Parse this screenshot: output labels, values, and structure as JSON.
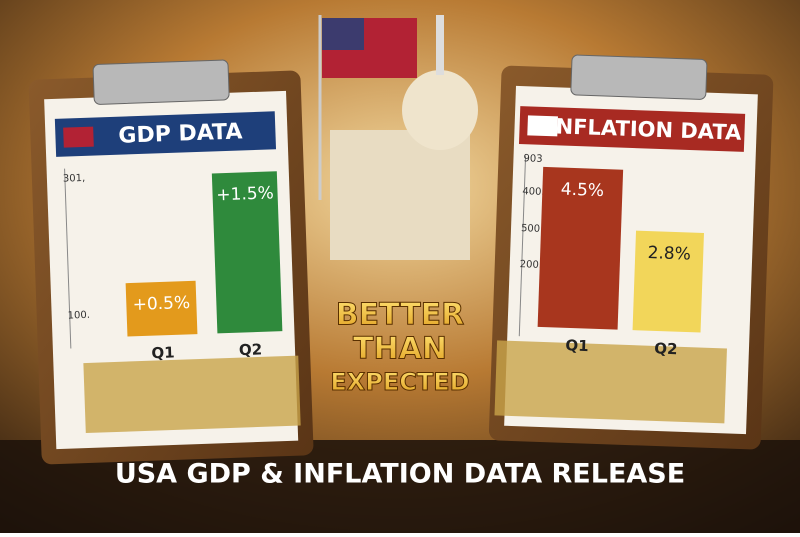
{
  "left_panel": {
    "title": "GDP DATA",
    "axis_labels": [
      "301,",
      "100."
    ],
    "categories": [
      "Q1",
      "Q2"
    ],
    "values": [
      0.5,
      1.5
    ],
    "value_labels": [
      "+0.5%",
      "+1.5%"
    ]
  },
  "right_panel": {
    "title": "INFLATION DATA",
    "axis_labels": [
      "903",
      "400.",
      "500",
      "200."
    ],
    "categories": [
      "Q1",
      "Q2"
    ],
    "values": [
      4.5,
      2.8
    ],
    "value_labels": [
      "4.5%",
      "2.8%"
    ]
  },
  "center_text": [
    "BETTER",
    "THAN",
    "EXPECTED"
  ],
  "footer": "USA GDP & INFLATION DATA RELEASE"
}
